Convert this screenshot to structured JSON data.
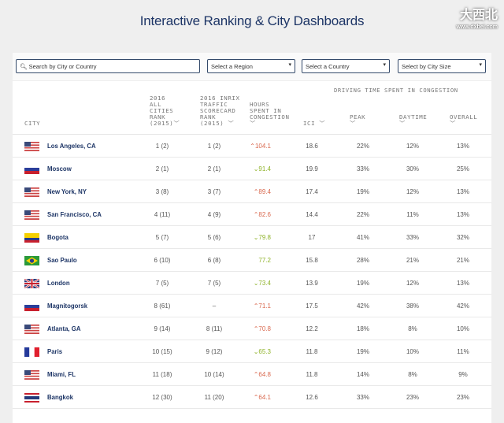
{
  "title": "Interactive Ranking & City Dashboards",
  "filters": {
    "search_placeholder": "Search by City or Country",
    "region": "Select a Region",
    "country": "Select a Country",
    "size": "Select by City Size"
  },
  "headers": {
    "city": "CITY",
    "rank_all": [
      "2016",
      "ALL",
      "CITIES",
      "RANK",
      "(2015)"
    ],
    "rank_inrix": [
      "2016 INRIX",
      "TRAFFIC",
      "SCORECARD",
      "RANK",
      "(2015)"
    ],
    "hours": [
      "HOURS",
      "SPENT IN",
      "CONGESTION"
    ],
    "ici": "ICI",
    "group": "DRIVING TIME SPENT IN CONGESTION",
    "peak": "PEAK",
    "daytime": "DAYTIME",
    "overall": "OVERALL"
  },
  "rows": [
    {
      "flag": "us",
      "city": "Los Angeles, CA",
      "rank": "1 (2)",
      "inrix": "1 (2)",
      "trend": "up",
      "hours": "104.1",
      "ici": "18.6",
      "peak": "22%",
      "daytime": "12%",
      "overall": "13%"
    },
    {
      "flag": "ru",
      "city": "Moscow",
      "rank": "2 (1)",
      "inrix": "2 (1)",
      "trend": "down",
      "hours": "91.4",
      "ici": "19.9",
      "peak": "33%",
      "daytime": "30%",
      "overall": "25%"
    },
    {
      "flag": "us",
      "city": "New York, NY",
      "rank": "3 (8)",
      "inrix": "3 (7)",
      "trend": "up",
      "hours": "89.4",
      "ici": "17.4",
      "peak": "19%",
      "daytime": "12%",
      "overall": "13%"
    },
    {
      "flag": "us",
      "city": "San Francisco, CA",
      "rank": "4 (11)",
      "inrix": "4 (9)",
      "trend": "up",
      "hours": "82.6",
      "ici": "14.4",
      "peak": "22%",
      "daytime": "11%",
      "overall": "13%"
    },
    {
      "flag": "co",
      "city": "Bogota",
      "rank": "5 (7)",
      "inrix": "5 (6)",
      "trend": "down",
      "hours": "79.8",
      "ici": "17",
      "peak": "41%",
      "daytime": "33%",
      "overall": "32%"
    },
    {
      "flag": "br",
      "city": "Sao Paulo",
      "rank": "6 (10)",
      "inrix": "6 (8)",
      "trend": "flat",
      "hours": "77.2",
      "ici": "15.8",
      "peak": "28%",
      "daytime": "21%",
      "overall": "21%"
    },
    {
      "flag": "gb",
      "city": "London",
      "rank": "7 (5)",
      "inrix": "7 (5)",
      "trend": "down",
      "hours": "73.4",
      "ici": "13.9",
      "peak": "19%",
      "daytime": "12%",
      "overall": "13%"
    },
    {
      "flag": "ru",
      "city": "Magnitogorsk",
      "rank": "8 (61)",
      "inrix": "–",
      "trend": "up",
      "hours": "71.1",
      "ici": "17.5",
      "peak": "42%",
      "daytime": "38%",
      "overall": "42%"
    },
    {
      "flag": "us",
      "city": "Atlanta, GA",
      "rank": "9 (14)",
      "inrix": "8 (11)",
      "trend": "up",
      "hours": "70.8",
      "ici": "12.2",
      "peak": "18%",
      "daytime": "8%",
      "overall": "10%"
    },
    {
      "flag": "fr",
      "city": "Paris",
      "rank": "10 (15)",
      "inrix": "9 (12)",
      "trend": "down",
      "hours": "65.3",
      "ici": "11.8",
      "peak": "19%",
      "daytime": "10%",
      "overall": "11%"
    },
    {
      "flag": "us",
      "city": "Miami, FL",
      "rank": "11 (18)",
      "inrix": "10 (14)",
      "trend": "up",
      "hours": "64.8",
      "ici": "11.8",
      "peak": "14%",
      "daytime": "8%",
      "overall": "9%"
    },
    {
      "flag": "th",
      "city": "Bangkok",
      "rank": "12 (30)",
      "inrix": "11 (20)",
      "trend": "up",
      "hours": "64.1",
      "ici": "12.6",
      "peak": "33%",
      "daytime": "23%",
      "overall": "23%"
    }
  ],
  "watermark": {
    "logo": "大西北",
    "url": "www.dxbei.com"
  }
}
